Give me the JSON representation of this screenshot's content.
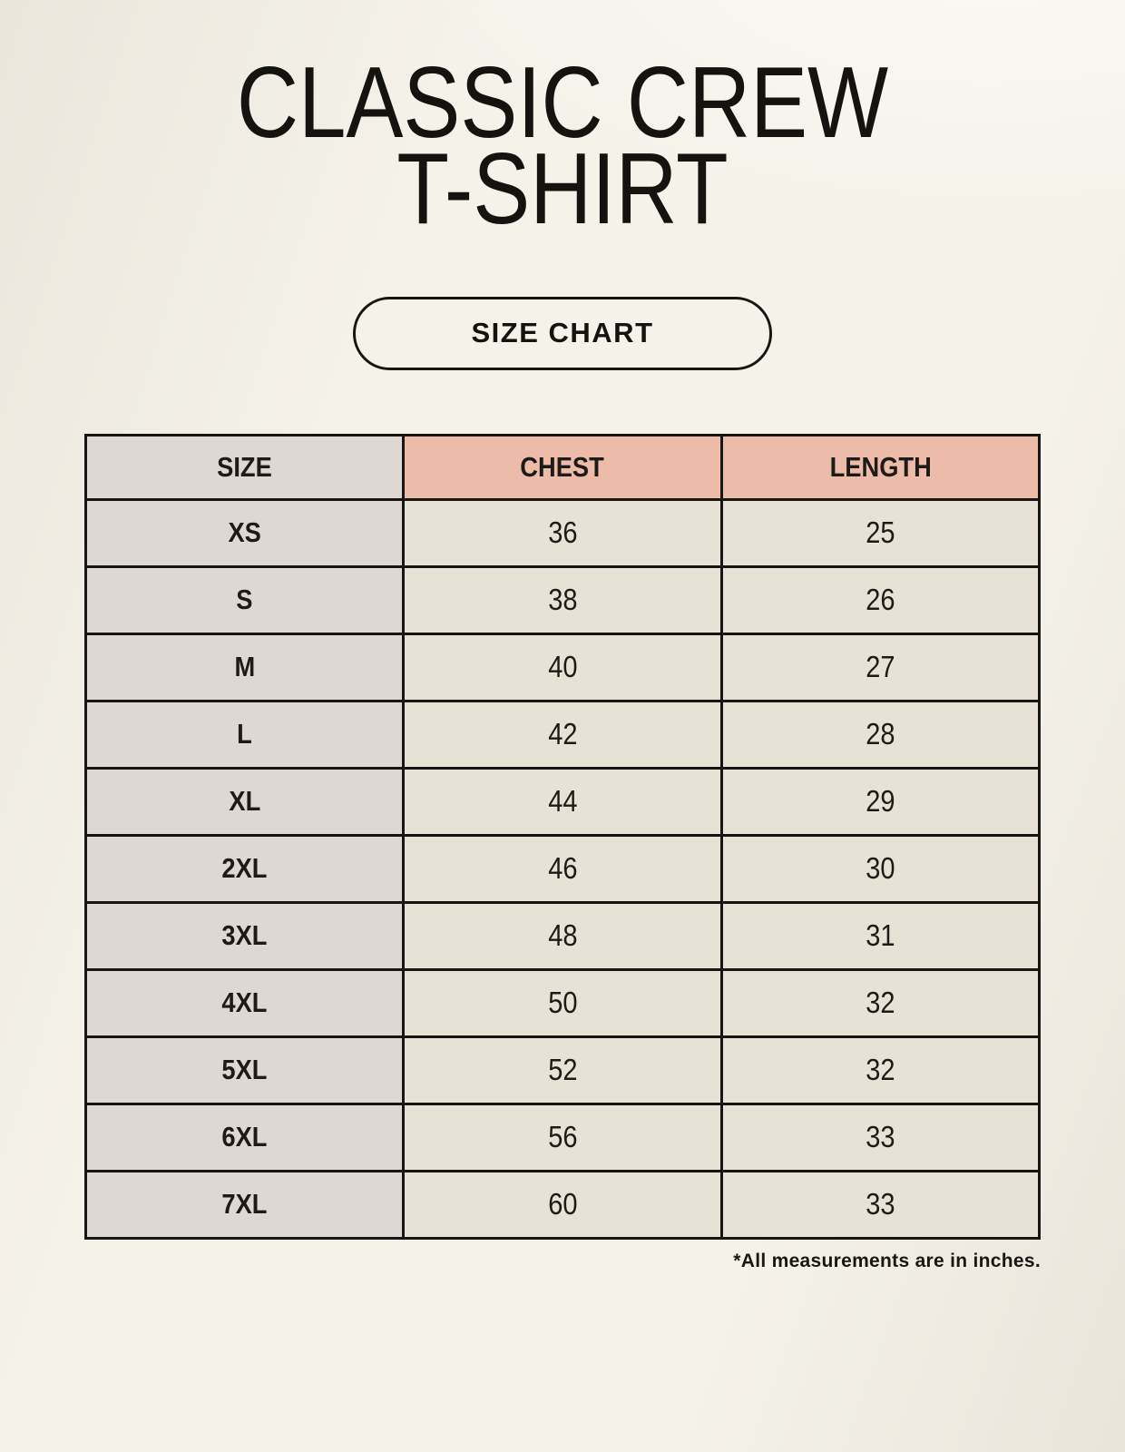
{
  "page": {
    "title_line1": "CLASSIC CREW",
    "title_line2": "T-SHIRT",
    "badge_label": "SIZE CHART",
    "footnote": "*All measurements are in inches."
  },
  "colors": {
    "background": "#f5f2ea",
    "header_accent": "#edbbaa",
    "size_column_bg": "#ded7d2",
    "cell_bg": "#e8e1d6",
    "border": "#171614",
    "text": "#1d1b18"
  },
  "size_table": {
    "headers": [
      "SIZE",
      "CHEST",
      "LENGTH"
    ],
    "rows": [
      {
        "size": "XS",
        "chest": "36",
        "length": "25"
      },
      {
        "size": "S",
        "chest": "38",
        "length": "26"
      },
      {
        "size": "M",
        "chest": "40",
        "length": "27"
      },
      {
        "size": "L",
        "chest": "42",
        "length": "28"
      },
      {
        "size": "XL",
        "chest": "44",
        "length": "29"
      },
      {
        "size": "2XL",
        "chest": "46",
        "length": "30"
      },
      {
        "size": "3XL",
        "chest": "48",
        "length": "31"
      },
      {
        "size": "4XL",
        "chest": "50",
        "length": "32"
      },
      {
        "size": "5XL",
        "chest": "52",
        "length": "32"
      },
      {
        "size": "6XL",
        "chest": "56",
        "length": "33"
      },
      {
        "size": "7XL",
        "chest": "60",
        "length": "33"
      }
    ]
  },
  "chart_data": {
    "type": "table",
    "title": "CLASSIC CREW T-SHIRT",
    "subtitle": "SIZE CHART",
    "columns": [
      "SIZE",
      "CHEST",
      "LENGTH"
    ],
    "rows": [
      [
        "XS",
        36,
        25
      ],
      [
        "S",
        38,
        26
      ],
      [
        "M",
        40,
        27
      ],
      [
        "L",
        42,
        28
      ],
      [
        "XL",
        44,
        29
      ],
      [
        "2XL",
        46,
        30
      ],
      [
        "3XL",
        48,
        31
      ],
      [
        "4XL",
        50,
        32
      ],
      [
        "5XL",
        52,
        32
      ],
      [
        "6XL",
        56,
        33
      ],
      [
        "7XL",
        60,
        33
      ]
    ],
    "units": "inches",
    "note": "*All measurements are in inches."
  }
}
